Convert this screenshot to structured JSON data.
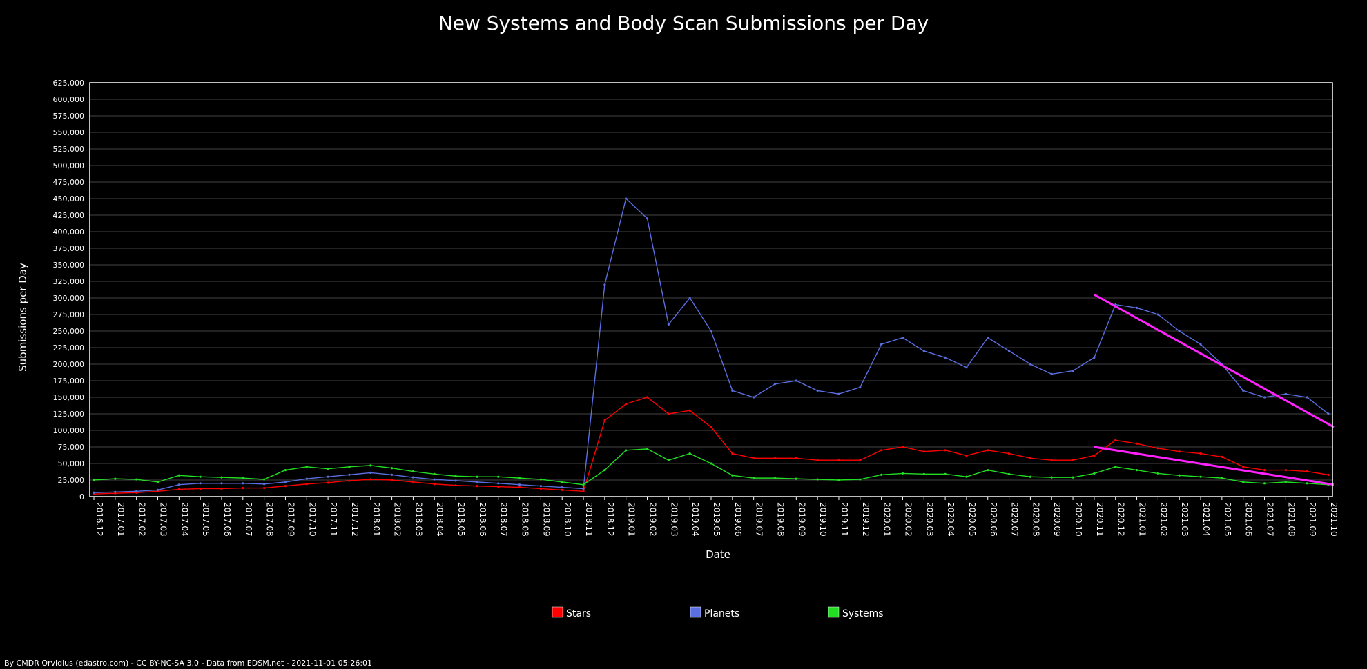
{
  "footer": "By CMDR Orvidius (edastro.com) - CC BY-NC-SA 3.0 - Data from EDSM.net - 2021-11-01 05:26:01",
  "chart_data": {
    "type": "line",
    "title": "New Systems and Body Scan Submissions per Day",
    "xlabel": "Date",
    "ylabel": "Submissions per Day",
    "ylim": [
      0,
      625000
    ],
    "y_ticks": [
      0,
      25000,
      50000,
      75000,
      100000,
      125000,
      150000,
      175000,
      200000,
      225000,
      250000,
      275000,
      300000,
      325000,
      350000,
      375000,
      400000,
      425000,
      450000,
      475000,
      500000,
      525000,
      550000,
      575000,
      600000,
      625000
    ],
    "y_tick_labels": [
      "0",
      "25,000",
      "50,000",
      "75,000",
      "100,000",
      "125,000",
      "150,000",
      "175,000",
      "200,000",
      "225,000",
      "250,000",
      "275,000",
      "300,000",
      "325,000",
      "350,000",
      "375,000",
      "400,000",
      "425,000",
      "450,000",
      "475,000",
      "500,000",
      "525,000",
      "550,000",
      "575,000",
      "600,000",
      "625,000"
    ],
    "grid": true,
    "legend_position": "bottom-center",
    "categories": [
      "2016.12",
      "2017.01",
      "2017.02",
      "2017.03",
      "2017.04",
      "2017.05",
      "2017.06",
      "2017.07",
      "2017.08",
      "2017.09",
      "2017.10",
      "2017.11",
      "2017.12",
      "2018.01",
      "2018.02",
      "2018.03",
      "2018.04",
      "2018.05",
      "2018.06",
      "2018.07",
      "2018.08",
      "2018.09",
      "2018.10",
      "2018.11",
      "2018.12",
      "2019.01",
      "2019.02",
      "2019.03",
      "2019.04",
      "2019.05",
      "2019.06",
      "2019.07",
      "2019.08",
      "2019.09",
      "2019.10",
      "2019.11",
      "2019.12",
      "2020.01",
      "2020.02",
      "2020.03",
      "2020.04",
      "2020.05",
      "2020.06",
      "2020.07",
      "2020.08",
      "2020.09",
      "2020.10",
      "2020.11",
      "2020.12",
      "2021.01",
      "2021.02",
      "2021.03",
      "2021.04",
      "2021.05",
      "2021.06",
      "2021.07",
      "2021.08",
      "2021.09",
      "2021.10"
    ],
    "series": [
      {
        "name": "Stars",
        "color": "#ff0000",
        "values": [
          4000,
          5000,
          6000,
          8000,
          11000,
          12000,
          12000,
          13000,
          13000,
          16000,
          19000,
          21000,
          24000,
          26000,
          25000,
          22000,
          19000,
          17000,
          16000,
          15000,
          14000,
          12000,
          10000,
          8000,
          115000,
          140000,
          150000,
          125000,
          130000,
          105000,
          65000,
          58000,
          58000,
          58000,
          55000,
          55000,
          55000,
          70000,
          75000,
          68000,
          70000,
          62000,
          70000,
          65000,
          58000,
          55000,
          55000,
          62000,
          85000,
          80000,
          73000,
          68000,
          65000,
          60000,
          45000,
          40000,
          40000,
          38000,
          33000
        ]
      },
      {
        "name": "Planets",
        "color": "#5b6ee0",
        "values": [
          6000,
          7000,
          8000,
          10000,
          18000,
          20000,
          20000,
          20000,
          19000,
          22000,
          27000,
          30000,
          33000,
          36000,
          33000,
          29000,
          26000,
          24000,
          22000,
          20000,
          18000,
          16000,
          14000,
          12000,
          320000,
          450000,
          420000,
          260000,
          300000,
          250000,
          160000,
          150000,
          170000,
          175000,
          160000,
          155000,
          165000,
          230000,
          240000,
          220000,
          210000,
          195000,
          240000,
          220000,
          200000,
          185000,
          190000,
          210000,
          290000,
          285000,
          275000,
          250000,
          230000,
          200000,
          160000,
          150000,
          155000,
          150000,
          125000
        ]
      },
      {
        "name": "Systems",
        "color": "#22dd22",
        "values": [
          25000,
          27000,
          26000,
          22000,
          32000,
          30000,
          29000,
          28000,
          26000,
          40000,
          45000,
          42000,
          45000,
          47000,
          43000,
          38000,
          34000,
          31000,
          30000,
          30000,
          28000,
          26000,
          22000,
          18000,
          40000,
          70000,
          72000,
          55000,
          65000,
          50000,
          32000,
          28000,
          28000,
          27000,
          26000,
          25000,
          26000,
          33000,
          35000,
          34000,
          34000,
          30000,
          40000,
          34000,
          30000,
          29000,
          29000,
          35000,
          45000,
          40000,
          35000,
          32000,
          30000,
          28000,
          22000,
          20000,
          22000,
          20000,
          18000
        ]
      }
    ],
    "trendlines": [
      {
        "color": "#ff22ff",
        "from": [
          "2020.11",
          305000
        ],
        "to": [
          "2021.10",
          105000
        ]
      },
      {
        "color": "#ff22ff",
        "from": [
          "2020.11",
          75000
        ],
        "to": [
          "2021.10",
          18000
        ]
      }
    ]
  }
}
